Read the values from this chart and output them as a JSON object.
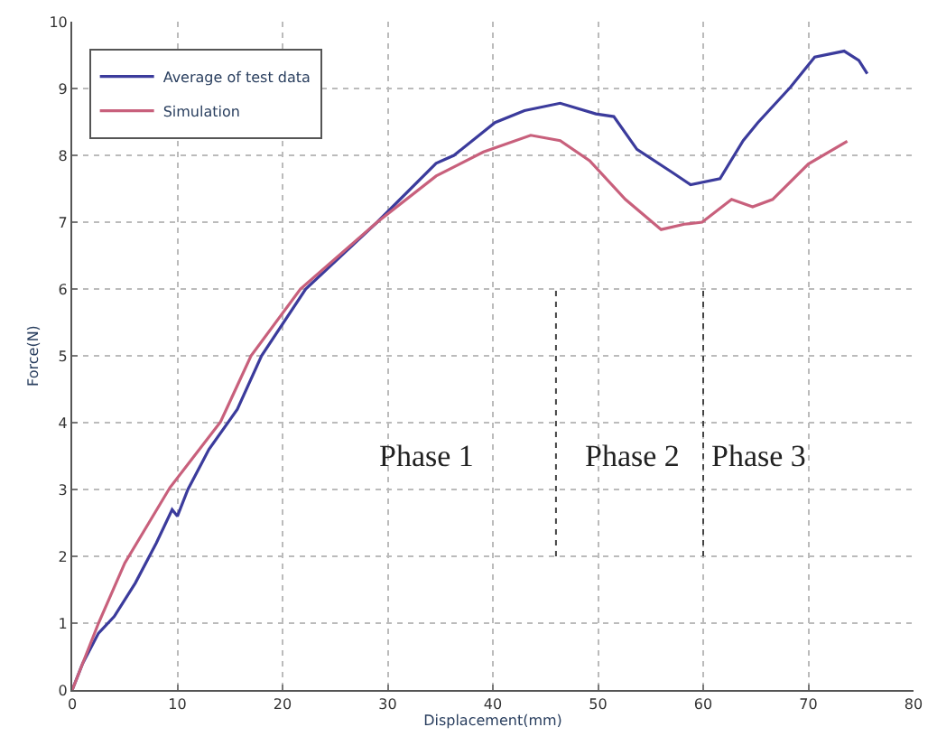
{
  "chart_data": {
    "type": "line",
    "xlabel": "Displacement(mm)",
    "ylabel": "Force(N)",
    "xlim": [
      0,
      80
    ],
    "xticks": [
      0,
      10,
      20,
      30,
      40,
      50,
      60,
      70,
      80
    ],
    "ylim": [
      0,
      10
    ],
    "yticks": [
      0,
      1,
      2,
      3,
      4,
      5,
      6,
      7,
      8,
      9,
      10
    ],
    "grid": true,
    "legend": "top left",
    "series": [
      {
        "name": "Average of test data",
        "color": "#3b3b9c",
        "x": [
          0,
          1,
          2.5,
          4,
          6,
          8,
          9.5,
          10,
          11,
          13,
          15.7,
          18,
          22.2,
          29,
          34.6,
          36.3,
          40.2,
          43,
          46.4,
          49.8,
          51.5,
          53.7,
          57.1,
          58.8,
          61.6,
          63.8,
          65.2,
          68.3,
          70.6,
          73.4,
          74.8,
          75.6
        ],
        "values": [
          0,
          0.4,
          0.85,
          1.1,
          1.6,
          2.2,
          2.7,
          2.6,
          3.0,
          3.6,
          4.2,
          5.0,
          6.0,
          7.0,
          7.88,
          8.0,
          8.49,
          8.67,
          8.78,
          8.62,
          8.58,
          8.09,
          7.74,
          7.56,
          7.65,
          8.22,
          8.49,
          9.02,
          9.47,
          9.56,
          9.42,
          9.22
        ]
      },
      {
        "name": "Simulation",
        "color": "#c8607c",
        "x": [
          0,
          2.5,
          5,
          9.3,
          14.1,
          17.0,
          21.7,
          29,
          34.6,
          39.1,
          43.6,
          46.4,
          49.2,
          52.6,
          56,
          58.2,
          59.9,
          62.7,
          64.7,
          66.6,
          70,
          73.7
        ],
        "values": [
          0,
          1.0,
          1.9,
          3.03,
          4.01,
          5.0,
          6.0,
          7.0,
          7.69,
          8.05,
          8.3,
          8.22,
          7.92,
          7.34,
          6.89,
          6.97,
          7.0,
          7.34,
          7.23,
          7.34,
          7.87,
          8.21
        ]
      },
      {
        "color": "#444444",
        "line_style": "dotted",
        "x": [
          46,
          46
        ],
        "values": [
          2,
          6
        ]
      },
      {
        "color": "#444444",
        "line_style": "dotted",
        "x": [
          60,
          60
        ],
        "values": [
          2,
          6
        ]
      }
    ],
    "annotations": [
      "Phase 1",
      "Phase 2",
      "Phase 3"
    ]
  }
}
